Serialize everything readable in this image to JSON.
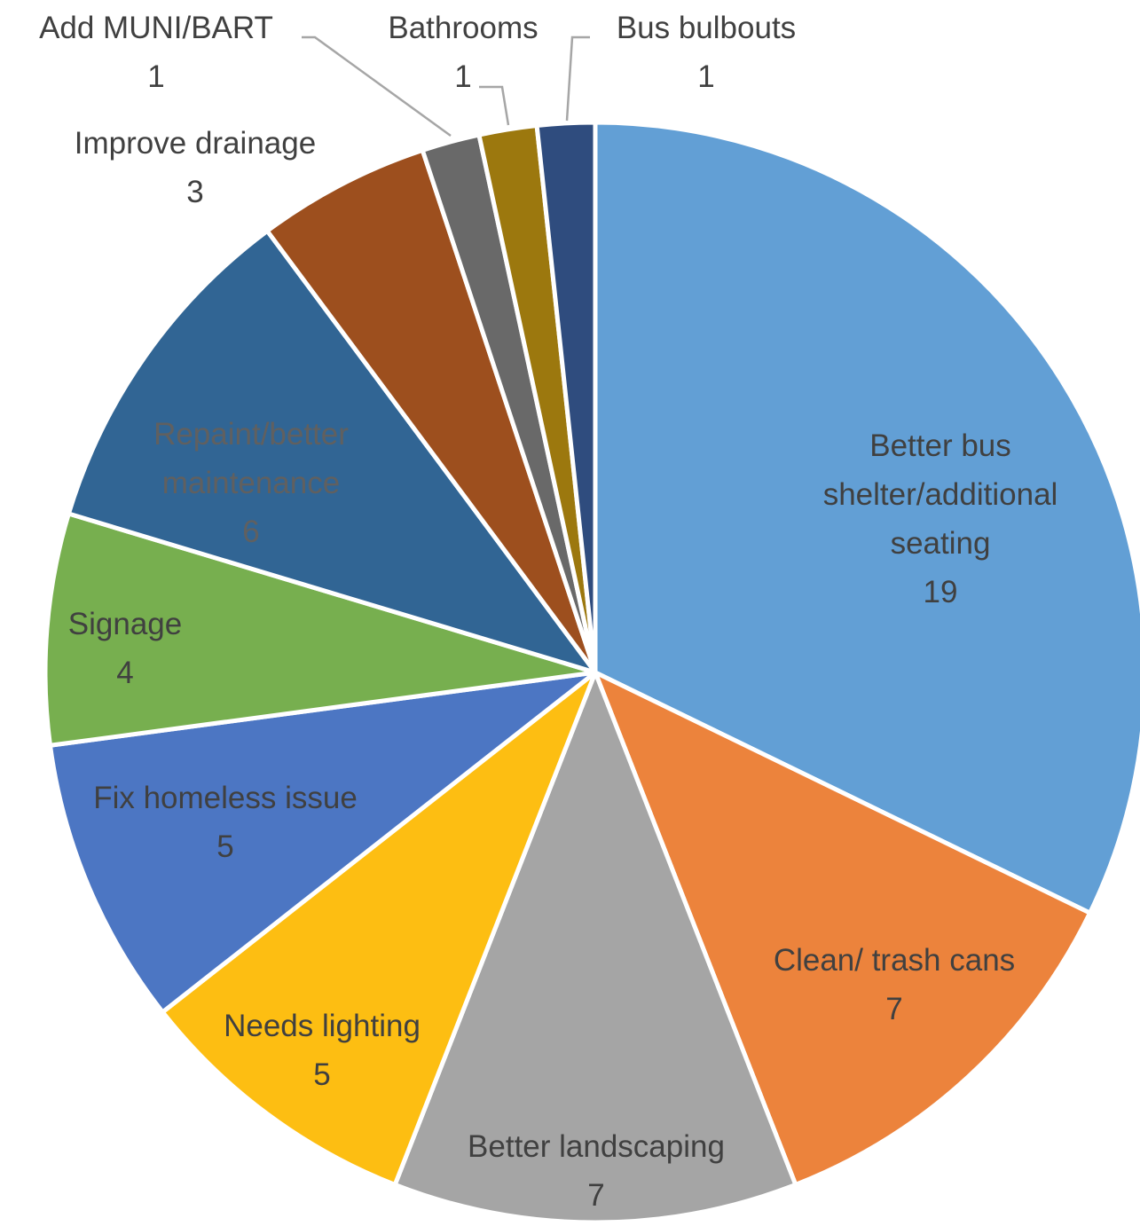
{
  "chart_data": {
    "type": "pie",
    "title": "",
    "slices": [
      {
        "label": "Better bus shelter/additional seating",
        "label_lines": [
          "Better bus",
          "shelter/additional",
          "seating"
        ],
        "value": 19,
        "value_text": "19",
        "color": "#629FD5",
        "text_color": "#404040"
      },
      {
        "label": "Clean/ trash cans",
        "label_lines": [
          "Clean/ trash cans"
        ],
        "value": 7,
        "value_text": "7",
        "color": "#EC833C",
        "text_color": "#404040"
      },
      {
        "label": "Better landscaping",
        "label_lines": [
          "Better landscaping"
        ],
        "value": 7,
        "value_text": "7",
        "color": "#A5A5A5",
        "text_color": "#404040"
      },
      {
        "label": "Needs lighting",
        "label_lines": [
          "Needs lighting"
        ],
        "value": 5,
        "value_text": "5",
        "color": "#FDBE12",
        "text_color": "#404040"
      },
      {
        "label": "Fix homeless issue",
        "label_lines": [
          "Fix homeless issue"
        ],
        "value": 5,
        "value_text": "5",
        "color": "#4C76C3",
        "text_color": "#404040"
      },
      {
        "label": "Signage",
        "label_lines": [
          "Signage"
        ],
        "value": 4,
        "value_text": "4",
        "color": "#77AF4F",
        "text_color": "#404040"
      },
      {
        "label": "Repaint/better maintenance",
        "label_lines": [
          "Repaint/better",
          "maintenance"
        ],
        "value": 6,
        "value_text": "6",
        "color": "#316594",
        "text_color": "#606060"
      },
      {
        "label": "Improve drainage",
        "label_lines": [
          "Improve drainage"
        ],
        "value": 3,
        "value_text": "3",
        "color": "#9D4F1E",
        "text_color": "#404040"
      },
      {
        "label": "Add MUNI/BART",
        "label_lines": [
          "Add MUNI/BART"
        ],
        "value": 1,
        "value_text": "1",
        "color": "#696969",
        "text_color": "#404040"
      },
      {
        "label": "Bathrooms",
        "label_lines": [
          "Bathrooms"
        ],
        "value": 1,
        "value_text": "1",
        "color": "#9C780E",
        "text_color": "#404040"
      },
      {
        "label": "Bus bulbouts",
        "label_lines": [
          "Bus bulbouts"
        ],
        "value": 1,
        "value_text": "1",
        "color": "#2F4C7E",
        "text_color": "#404040"
      }
    ],
    "start_angle": "12 o'clock",
    "direction": "clockwise",
    "legend": "none",
    "data_labels": "category name and value"
  }
}
